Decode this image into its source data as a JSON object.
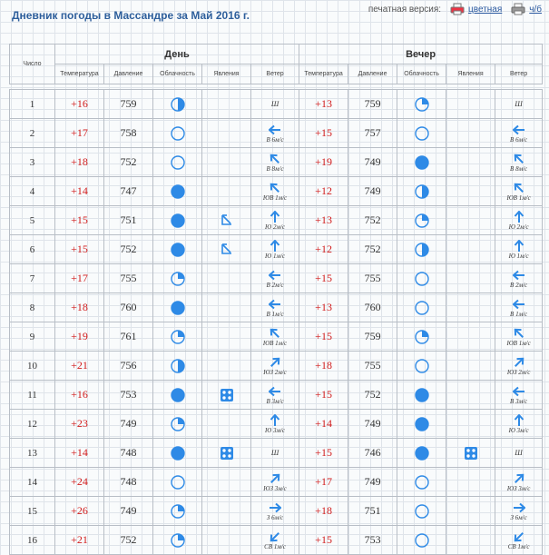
{
  "page": {
    "title": "Дневник погоды в Массандре за Май 2016 г.",
    "print_label": "печатная версия:",
    "color_link": "цветная",
    "bw_link": "ч/б"
  },
  "table": {
    "number_header": "Число",
    "day_header": "День",
    "evening_header": "Вечер",
    "columns": [
      "Температура",
      "Давление",
      "Облачность",
      "Явления",
      "Ветер"
    ]
  },
  "colors": {
    "accent": "#2e8ae6",
    "temperature": "#d11c1c",
    "title": "#2e5f9c"
  },
  "rows": [
    {
      "n": "1",
      "day": {
        "t": "+16",
        "p": "759",
        "cloud": "half",
        "ph": "",
        "wa": "",
        "wl": "Ш"
      },
      "eve": {
        "t": "+13",
        "p": "759",
        "cloud": "quarter",
        "ph": "",
        "wa": "",
        "wl": "Ш"
      }
    },
    {
      "n": "2",
      "day": {
        "t": "+17",
        "p": "758",
        "cloud": "clear",
        "ph": "",
        "wa": "w",
        "wl": "В 6м/с"
      },
      "eve": {
        "t": "+15",
        "p": "757",
        "cloud": "clear",
        "ph": "",
        "wa": "w",
        "wl": "В 6м/с"
      }
    },
    {
      "n": "3",
      "day": {
        "t": "+18",
        "p": "752",
        "cloud": "clear",
        "ph": "",
        "wa": "nw",
        "wl": "В 8м/с"
      },
      "eve": {
        "t": "+19",
        "p": "749",
        "cloud": "full",
        "ph": "",
        "wa": "nw",
        "wl": "В 8м/с"
      }
    },
    {
      "n": "4",
      "day": {
        "t": "+14",
        "p": "747",
        "cloud": "full",
        "ph": "",
        "wa": "nw",
        "wl": "ЮВ 1м/с"
      },
      "eve": {
        "t": "+12",
        "p": "749",
        "cloud": "half",
        "ph": "",
        "wa": "nw",
        "wl": "ЮВ 1м/с"
      }
    },
    {
      "n": "5",
      "day": {
        "t": "+15",
        "p": "751",
        "cloud": "full",
        "ph": "rain",
        "wa": "n",
        "wl": "Ю 2м/с"
      },
      "eve": {
        "t": "+13",
        "p": "752",
        "cloud": "quarter",
        "ph": "",
        "wa": "n",
        "wl": "Ю 2м/с"
      }
    },
    {
      "n": "6",
      "day": {
        "t": "+15",
        "p": "752",
        "cloud": "full",
        "ph": "rain",
        "wa": "n",
        "wl": "Ю 1м/с"
      },
      "eve": {
        "t": "+12",
        "p": "752",
        "cloud": "half",
        "ph": "",
        "wa": "n",
        "wl": "Ю 1м/с"
      }
    },
    {
      "n": "7",
      "day": {
        "t": "+17",
        "p": "755",
        "cloud": "quarter",
        "ph": "",
        "wa": "w",
        "wl": "В 2м/с"
      },
      "eve": {
        "t": "+15",
        "p": "755",
        "cloud": "clear",
        "ph": "",
        "wa": "w",
        "wl": "В 2м/с"
      }
    },
    {
      "n": "8",
      "day": {
        "t": "+18",
        "p": "760",
        "cloud": "full",
        "ph": "",
        "wa": "w",
        "wl": "В 1м/с"
      },
      "eve": {
        "t": "+13",
        "p": "760",
        "cloud": "clear",
        "ph": "",
        "wa": "w",
        "wl": "В 1м/с"
      }
    },
    {
      "n": "9",
      "day": {
        "t": "+19",
        "p": "761",
        "cloud": "quarter",
        "ph": "",
        "wa": "nw",
        "wl": "ЮВ 1м/с"
      },
      "eve": {
        "t": "+15",
        "p": "759",
        "cloud": "quarter",
        "ph": "",
        "wa": "nw",
        "wl": "ЮВ 1м/с"
      }
    },
    {
      "n": "10",
      "day": {
        "t": "+21",
        "p": "756",
        "cloud": "half",
        "ph": "",
        "wa": "ne",
        "wl": "ЮЗ 2м/с"
      },
      "eve": {
        "t": "+18",
        "p": "755",
        "cloud": "clear",
        "ph": "",
        "wa": "ne",
        "wl": "ЮЗ 2м/с"
      }
    },
    {
      "n": "11",
      "day": {
        "t": "+16",
        "p": "753",
        "cloud": "full",
        "ph": "snow",
        "wa": "w",
        "wl": "В 3м/с"
      },
      "eve": {
        "t": "+15",
        "p": "752",
        "cloud": "full",
        "ph": "",
        "wa": "w",
        "wl": "В 3м/с"
      }
    },
    {
      "n": "12",
      "day": {
        "t": "+23",
        "p": "749",
        "cloud": "quarter",
        "ph": "",
        "wa": "n",
        "wl": "Ю 3м/с"
      },
      "eve": {
        "t": "+14",
        "p": "749",
        "cloud": "full",
        "ph": "",
        "wa": "n",
        "wl": "Ю 3м/с"
      }
    },
    {
      "n": "13",
      "day": {
        "t": "+14",
        "p": "748",
        "cloud": "full",
        "ph": "snow",
        "wa": "",
        "wl": "Ш"
      },
      "eve": {
        "t": "+15",
        "p": "746",
        "cloud": "full",
        "ph": "snow",
        "wa": "",
        "wl": "Ш"
      }
    },
    {
      "n": "14",
      "day": {
        "t": "+24",
        "p": "748",
        "cloud": "clear",
        "ph": "",
        "wa": "ne",
        "wl": "ЮЗ 3м/с"
      },
      "eve": {
        "t": "+17",
        "p": "749",
        "cloud": "clear",
        "ph": "",
        "wa": "ne",
        "wl": "ЮЗ 3м/с"
      }
    },
    {
      "n": "15",
      "day": {
        "t": "+26",
        "p": "749",
        "cloud": "quarter",
        "ph": "",
        "wa": "e",
        "wl": "З 6м/с"
      },
      "eve": {
        "t": "+18",
        "p": "751",
        "cloud": "clear",
        "ph": "",
        "wa": "e",
        "wl": "З 6м/с"
      }
    },
    {
      "n": "16",
      "day": {
        "t": "+21",
        "p": "752",
        "cloud": "quarter",
        "ph": "",
        "wa": "sw",
        "wl": "СВ 1м/с"
      },
      "eve": {
        "t": "+15",
        "p": "753",
        "cloud": "clear",
        "ph": "",
        "wa": "sw",
        "wl": "СВ 1м/с"
      }
    }
  ]
}
